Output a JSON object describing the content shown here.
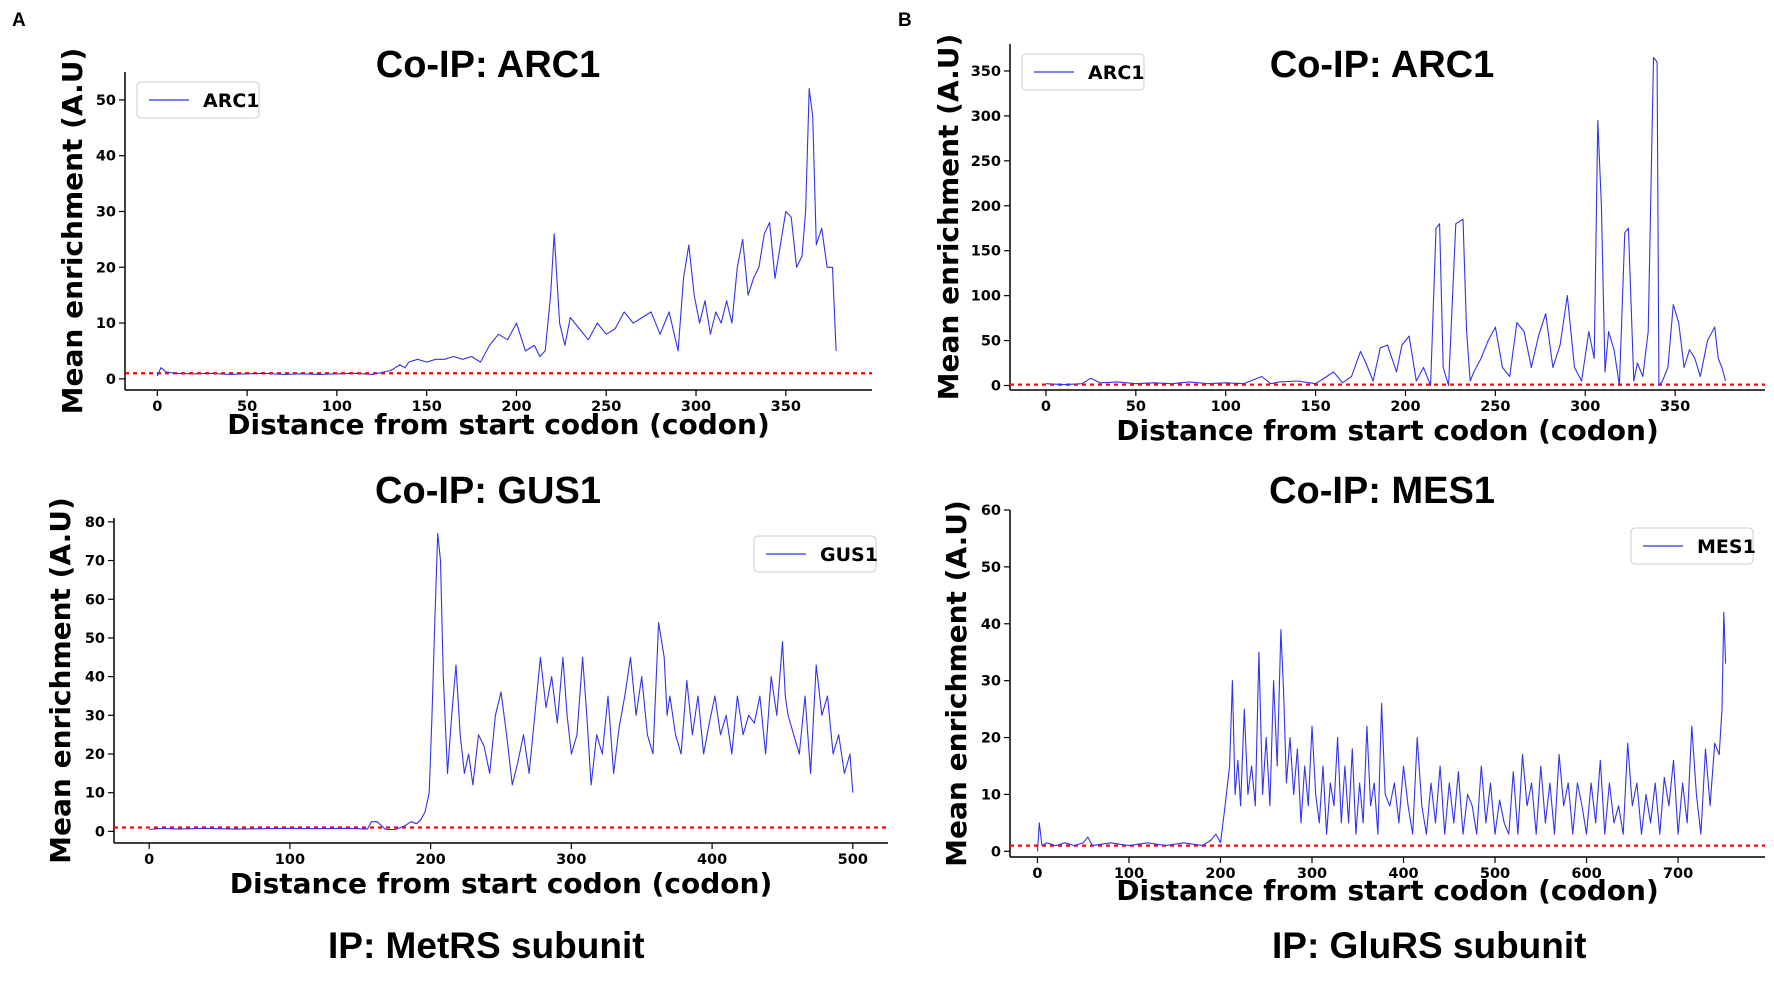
{
  "panel_labels": {
    "a": "A",
    "b": "B"
  },
  "captions": {
    "left": "IP: MetRS subunit",
    "right": "IP: GluRS subunit"
  },
  "colors": {
    "line": "#3333ee",
    "baseline": "#ff0000",
    "axis": "#000000"
  },
  "chart_data": [
    {
      "type": "line",
      "title": "Co-IP: ARC1",
      "xlabel": "Distance from start codon (codon)",
      "ylabel": "Mean enrichment (A.U)",
      "xlim": [
        -18,
        398
      ],
      "ylim": [
        -2,
        55
      ],
      "xticks": [
        0,
        50,
        100,
        150,
        200,
        250,
        300,
        350
      ],
      "yticks": [
        0,
        10,
        20,
        30,
        40,
        50
      ],
      "legend": {
        "label": "ARC1",
        "position": "top-left"
      },
      "baseline": 1,
      "series": [
        {
          "name": "ARC1",
          "x": [
            0,
            2,
            5,
            10,
            20,
            30,
            40,
            50,
            60,
            70,
            80,
            90,
            100,
            110,
            120,
            130,
            135,
            138,
            140,
            145,
            150,
            155,
            160,
            165,
            170,
            175,
            180,
            185,
            190,
            195,
            200,
            205,
            210,
            213,
            216,
            219,
            221,
            224,
            227,
            230,
            235,
            240,
            245,
            250,
            255,
            260,
            265,
            270,
            275,
            280,
            285,
            290,
            293,
            296,
            299,
            302,
            305,
            308,
            311,
            314,
            317,
            320,
            323,
            326,
            329,
            332,
            335,
            338,
            341,
            344,
            347,
            350,
            353,
            356,
            359,
            361,
            363,
            365,
            367,
            370,
            373,
            376,
            378
          ],
          "y": [
            0.5,
            2,
            1.2,
            1,
            0.9,
            1,
            0.8,
            0.9,
            1,
            0.8,
            0.9,
            0.8,
            0.9,
            1,
            0.8,
            1.5,
            2.5,
            2,
            3,
            3.5,
            3,
            3.5,
            3.5,
            4,
            3.5,
            4,
            3,
            6,
            8,
            7,
            10,
            5,
            6,
            4,
            5,
            15,
            26,
            10,
            6,
            11,
            9,
            7,
            10,
            8,
            9,
            12,
            10,
            11,
            12,
            8,
            12,
            5,
            18,
            24,
            15,
            10,
            14,
            8,
            12,
            10,
            14,
            10,
            20,
            25,
            15,
            18,
            20,
            26,
            28,
            18,
            24,
            30,
            29,
            20,
            22,
            30,
            52,
            47,
            24,
            27,
            20,
            20,
            5
          ]
        }
      ]
    },
    {
      "type": "line",
      "title": "Co-IP: GUS1",
      "xlabel": "Distance from start codon (codon)",
      "ylabel": "Mean enrichment (A.U)",
      "xlim": [
        -25,
        525
      ],
      "ylim": [
        -3,
        81
      ],
      "xticks": [
        0,
        100,
        200,
        300,
        400,
        500
      ],
      "yticks": [
        0,
        10,
        20,
        30,
        40,
        50,
        60,
        70,
        80
      ],
      "legend": {
        "label": "GUS1",
        "position": "top-right"
      },
      "baseline": 1,
      "series": [
        {
          "name": "GUS1",
          "x": [
            0,
            10,
            20,
            40,
            60,
            80,
            100,
            120,
            140,
            155,
            158,
            162,
            168,
            175,
            182,
            186,
            190,
            193,
            196,
            199,
            201,
            203,
            205,
            207,
            209,
            212,
            215,
            218,
            221,
            224,
            227,
            230,
            234,
            238,
            242,
            246,
            250,
            254,
            258,
            262,
            266,
            270,
            274,
            278,
            282,
            286,
            290,
            294,
            297,
            300,
            304,
            308,
            311,
            314,
            318,
            322,
            326,
            330,
            334,
            338,
            342,
            346,
            350,
            354,
            358,
            362,
            366,
            368,
            370,
            374,
            378,
            382,
            386,
            390,
            394,
            398,
            402,
            406,
            410,
            414,
            418,
            422,
            426,
            430,
            434,
            438,
            442,
            446,
            450,
            452,
            454,
            458,
            462,
            466,
            470,
            474,
            478,
            482,
            486,
            490,
            494,
            498,
            500
          ],
          "y": [
            0.5,
            0.8,
            0.6,
            0.8,
            0.6,
            0.7,
            0.8,
            0.7,
            0.8,
            0.6,
            2.5,
            2.5,
            0.5,
            0.5,
            1.5,
            2.5,
            2,
            3,
            5,
            10,
            30,
            55,
            77,
            70,
            40,
            15,
            30,
            43,
            25,
            15,
            20,
            12,
            25,
            22,
            15,
            30,
            36,
            25,
            12,
            18,
            25,
            15,
            30,
            45,
            32,
            40,
            28,
            45,
            30,
            20,
            25,
            45,
            30,
            12,
            25,
            20,
            35,
            15,
            27,
            35,
            45,
            30,
            40,
            25,
            20,
            54,
            45,
            30,
            35,
            25,
            20,
            39,
            25,
            35,
            20,
            28,
            35,
            25,
            30,
            20,
            35,
            25,
            30,
            28,
            35,
            20,
            40,
            30,
            49,
            35,
            30,
            25,
            20,
            35,
            15,
            43,
            30,
            35,
            20,
            25,
            15,
            20,
            10
          ]
        }
      ]
    },
    {
      "type": "line",
      "title": "Co-IP: ARC1",
      "xlabel": "Distance from start codon (codon)",
      "ylabel": "Mean enrichment (A.U)",
      "xlim": [
        -20,
        400
      ],
      "ylim": [
        -5,
        380
      ],
      "xticks": [
        0,
        50,
        100,
        150,
        200,
        250,
        300,
        350
      ],
      "yticks": [
        0,
        50,
        100,
        150,
        200,
        250,
        300,
        350
      ],
      "legend": {
        "label": "ARC1",
        "position": "top-left"
      },
      "baseline": 1,
      "series": [
        {
          "name": "ARC1",
          "x": [
            0,
            10,
            20,
            25,
            30,
            40,
            50,
            60,
            70,
            80,
            90,
            100,
            110,
            120,
            125,
            130,
            140,
            150,
            160,
            165,
            170,
            175,
            178,
            182,
            186,
            190,
            195,
            198,
            202,
            206,
            210,
            214,
            217,
            219,
            221,
            224,
            228,
            232,
            234,
            236,
            238,
            242,
            246,
            250,
            254,
            258,
            262,
            266,
            270,
            274,
            278,
            282,
            286,
            290,
            294,
            298,
            302,
            305,
            307,
            309,
            311,
            313,
            316,
            319,
            322,
            324,
            327,
            329,
            332,
            335,
            338,
            340,
            341,
            343,
            346,
            349,
            352,
            355,
            358,
            361,
            364,
            368,
            372,
            374,
            376,
            378
          ],
          "y": [
            2,
            1,
            2,
            8,
            3,
            4,
            2,
            3,
            2,
            4,
            2,
            3,
            2,
            10,
            2,
            4,
            5,
            2,
            15,
            3,
            10,
            38,
            25,
            5,
            42,
            45,
            15,
            45,
            55,
            5,
            20,
            0,
            175,
            180,
            20,
            0,
            180,
            185,
            60,
            5,
            15,
            30,
            50,
            65,
            20,
            10,
            70,
            60,
            20,
            55,
            80,
            20,
            45,
            100,
            20,
            5,
            60,
            30,
            295,
            200,
            15,
            60,
            40,
            0,
            170,
            175,
            5,
            25,
            10,
            60,
            365,
            360,
            0,
            5,
            20,
            90,
            70,
            20,
            40,
            30,
            10,
            50,
            65,
            30,
            20,
            5
          ]
        }
      ]
    },
    {
      "type": "line",
      "title": "Co-IP: MES1",
      "xlabel": "Distance from start codon (codon)",
      "ylabel": "Mean enrichment (A.U)",
      "xlim": [
        -30,
        795
      ],
      "ylim": [
        -1,
        60
      ],
      "xticks": [
        0,
        100,
        200,
        300,
        400,
        500,
        600,
        700
      ],
      "yticks": [
        0,
        10,
        20,
        30,
        40,
        50,
        60
      ],
      "legend": {
        "label": "MES1",
        "position": "top-right"
      },
      "baseline": 1,
      "series": [
        {
          "name": "MES1",
          "x": [
            0,
            2,
            5,
            10,
            20,
            30,
            40,
            50,
            55,
            60,
            80,
            100,
            120,
            140,
            160,
            180,
            190,
            195,
            200,
            205,
            210,
            213,
            216,
            219,
            222,
            226,
            230,
            234,
            238,
            242,
            246,
            250,
            254,
            258,
            262,
            266,
            269,
            272,
            276,
            280,
            284,
            288,
            292,
            296,
            300,
            304,
            308,
            312,
            316,
            320,
            324,
            328,
            332,
            336,
            340,
            344,
            348,
            352,
            356,
            360,
            364,
            368,
            372,
            376,
            380,
            385,
            390,
            395,
            400,
            405,
            410,
            415,
            420,
            425,
            430,
            435,
            440,
            445,
            450,
            455,
            460,
            465,
            470,
            475,
            480,
            485,
            490,
            495,
            500,
            505,
            510,
            515,
            520,
            525,
            530,
            535,
            540,
            545,
            550,
            555,
            560,
            565,
            570,
            575,
            580,
            585,
            590,
            595,
            600,
            605,
            610,
            615,
            620,
            625,
            630,
            635,
            640,
            645,
            650,
            655,
            660,
            665,
            670,
            675,
            680,
            685,
            690,
            695,
            700,
            705,
            710,
            715,
            720,
            725,
            730,
            735,
            740,
            745,
            748,
            750,
            752
          ],
          "y": [
            0,
            5,
            1,
            1.5,
            1,
            1.5,
            1,
            1.5,
            2.5,
            1,
            1.5,
            1,
            1.5,
            1,
            1.5,
            1,
            2,
            3,
            1.5,
            8,
            15,
            30,
            10,
            16,
            8,
            25,
            10,
            15,
            8,
            35,
            10,
            20,
            8,
            30,
            15,
            39,
            28,
            12,
            20,
            10,
            18,
            5,
            15,
            8,
            22,
            10,
            5,
            15,
            3,
            12,
            8,
            20,
            5,
            15,
            5,
            18,
            3,
            12,
            5,
            22,
            8,
            12,
            3,
            26,
            10,
            8,
            12,
            5,
            15,
            8,
            3,
            20,
            8,
            3,
            12,
            5,
            15,
            3,
            12,
            5,
            14,
            3,
            10,
            8,
            3,
            15,
            5,
            12,
            3,
            9,
            5,
            3,
            14,
            3,
            17,
            8,
            12,
            3,
            15,
            5,
            12,
            3,
            17,
            8,
            12,
            3,
            12,
            8,
            3,
            12,
            5,
            16,
            3,
            12,
            5,
            8,
            3,
            19,
            8,
            12,
            3,
            10,
            5,
            12,
            3,
            13,
            8,
            16,
            3,
            12,
            5,
            22,
            10,
            3,
            18,
            8,
            19,
            17,
            25,
            42,
            33
          ]
        }
      ]
    }
  ]
}
